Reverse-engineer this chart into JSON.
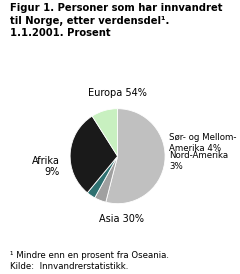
{
  "title_line1": "Figur 1. Personer som har innvandret",
  "title_line2": "til Norge, etter verdensdel¹.",
  "title_line3": "1.1.2001. Prosent",
  "slices": [
    54,
    4,
    3,
    30,
    9
  ],
  "colors": [
    "#c0c0c0",
    "#a0a0a0",
    "#2e7070",
    "#1a1a1a",
    "#c8f0c0"
  ],
  "footnote_line1": "¹ Mindre enn en prosent fra Oseania.",
  "footnote_line2": "Kilde:  Innvandrerstatistikk.",
  "startangle": 90,
  "background_color": "#ffffff"
}
